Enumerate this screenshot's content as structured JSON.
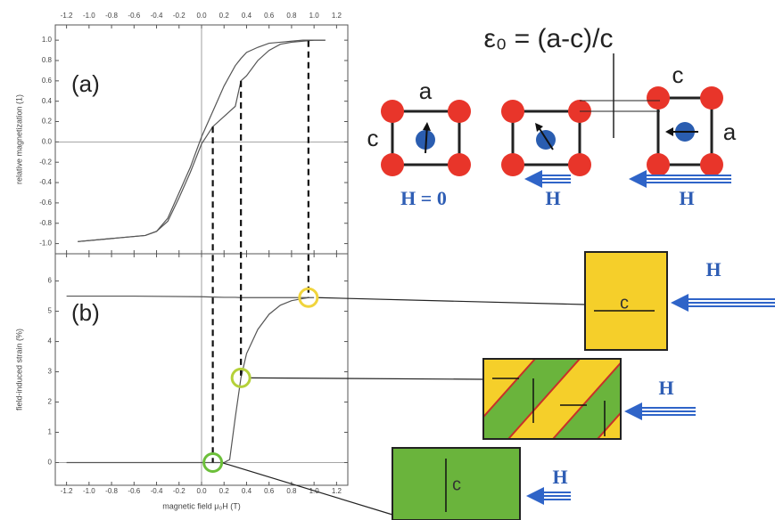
{
  "chart_data": [
    {
      "type": "line",
      "annotation": "(a)",
      "ylabel": "relative magnetization (1)",
      "x": [
        -1.1,
        -0.8,
        -0.5,
        -0.4,
        -0.3,
        -0.2,
        -0.1,
        0,
        0.1,
        0.2,
        0.3,
        0.35,
        0.4,
        0.5,
        0.6,
        0.7,
        0.8,
        0.9,
        1.0,
        1.1
      ],
      "series": [
        {
          "color": "#555555",
          "values": [
            -0.98,
            -0.95,
            -0.92,
            -0.88,
            -0.78,
            -0.55,
            -0.3,
            -0.02,
            0.15,
            0.25,
            0.35,
            0.6,
            0.65,
            0.8,
            0.9,
            0.96,
            0.98,
            0.99,
            1.0,
            1.0
          ]
        },
        {
          "color": "#555555",
          "values": [
            -0.98,
            -0.95,
            -0.92,
            -0.88,
            -0.75,
            -0.5,
            -0.25,
            0.05,
            0.3,
            0.55,
            0.75,
            0.82,
            0.88,
            0.93,
            0.97,
            0.98,
            0.99,
            1.0,
            1.0,
            1.0
          ]
        }
      ],
      "xlim": [
        -1.3,
        1.3
      ],
      "xticks": [
        {
          "value": -1.2,
          "label": "-1.2"
        },
        {
          "value": -1.0,
          "label": "-1.0"
        },
        {
          "value": -0.8,
          "label": "-0.8"
        },
        {
          "value": -0.6,
          "label": "-0.6"
        },
        {
          "value": -0.4,
          "label": "-0.4"
        },
        {
          "value": -0.2,
          "label": "-0.2"
        },
        {
          "value": 0,
          "label": "0.0"
        },
        {
          "value": 0.2,
          "label": "0.2"
        },
        {
          "value": 0.4,
          "label": "0.4"
        },
        {
          "value": 0.6,
          "label": "0.6"
        },
        {
          "value": 0.8,
          "label": "0.8"
        },
        {
          "value": 1.0,
          "label": "1.0"
        },
        {
          "value": 1.2,
          "label": "1.2"
        }
      ],
      "ylim": [
        -1.1,
        1.15
      ],
      "yticks": [
        {
          "value": -1.0,
          "label": "-1.0"
        },
        {
          "value": -0.8,
          "label": "-0.8"
        },
        {
          "value": -0.6,
          "label": "-0.6"
        },
        {
          "value": -0.4,
          "label": "-0.4"
        },
        {
          "value": -0.2,
          "label": "-0.2"
        },
        {
          "value": 0,
          "label": "0.0"
        },
        {
          "value": 0.2,
          "label": "0.2"
        },
        {
          "value": 0.4,
          "label": "0.4"
        },
        {
          "value": 0.6,
          "label": "0.6"
        },
        {
          "value": 0.8,
          "label": "0.8"
        },
        {
          "value": 1.0,
          "label": "1.0"
        }
      ]
    },
    {
      "type": "line",
      "annotation": "(b)",
      "ylabel": "field-induced strain (%)",
      "xlabel": "magnetic field μ₀H (T)",
      "x": [
        -1.2,
        -0.6,
        0,
        0.1,
        0.2,
        0.25,
        0.3,
        0.35,
        0.4,
        0.5,
        0.6,
        0.7,
        0.8,
        0.9,
        0.95,
        1.0
      ],
      "series": [
        {
          "color": "#555555",
          "values": [
            0,
            0,
            0,
            0,
            0,
            0.1,
            1.5,
            2.8,
            3.6,
            4.4,
            4.9,
            5.2,
            5.35,
            5.42,
            5.45,
            5.45
          ]
        },
        {
          "color": "#555555",
          "values": [
            5.5,
            5.5,
            5.48,
            5.47,
            5.46,
            5.46,
            5.46,
            5.45,
            5.45,
            5.45,
            5.45,
            5.45,
            5.45,
            5.45,
            5.45,
            null
          ]
        }
      ],
      "markers": [
        {
          "x": 0.1,
          "y": 0,
          "color": "#6cbf3a"
        },
        {
          "x": 0.35,
          "y": 2.8,
          "color": "#b5d13a"
        },
        {
          "x": 0.95,
          "y": 5.45,
          "color": "#f0d43c"
        }
      ],
      "xlim": [
        -1.3,
        1.3
      ],
      "xticks": [
        {
          "value": -1.2,
          "label": "-1.2"
        },
        {
          "value": -1.0,
          "label": "-1.0"
        },
        {
          "value": -0.8,
          "label": "-0.8"
        },
        {
          "value": -0.6,
          "label": "-0.6"
        },
        {
          "value": -0.4,
          "label": "-0.4"
        },
        {
          "value": -0.2,
          "label": "-0.2"
        },
        {
          "value": 0,
          "label": "0.0"
        },
        {
          "value": 0.2,
          "label": "0.2"
        },
        {
          "value": 0.4,
          "label": "0.4"
        },
        {
          "value": 0.6,
          "label": "0.6"
        },
        {
          "value": 0.8,
          "label": "0.8"
        },
        {
          "value": 1.0,
          "label": "1.0"
        },
        {
          "value": 1.2,
          "label": "1.2"
        }
      ],
      "ylim": [
        -0.75,
        6.9
      ],
      "yticks": [
        0,
        1,
        2,
        3,
        4,
        5,
        6
      ]
    }
  ],
  "diagram": {
    "equation": "ε₀ = (a-c)/c",
    "cells": [
      {
        "top": "a",
        "left": "c",
        "field": "H = 0"
      },
      {
        "field": "H"
      },
      {
        "top": "c",
        "right": "a",
        "field": "H"
      }
    ],
    "domains": [
      {
        "label": "c",
        "field": "H"
      },
      {
        "field": "H"
      },
      {
        "label": "c",
        "field": "H"
      }
    ]
  }
}
